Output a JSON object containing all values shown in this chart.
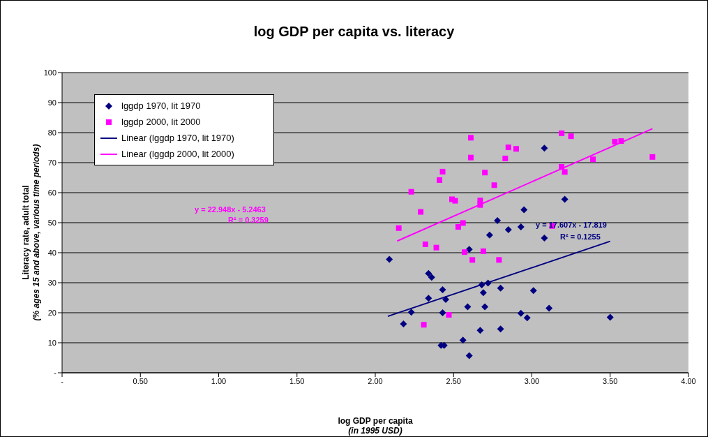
{
  "chart_data": {
    "type": "scatter",
    "title": "log GDP per capita vs. literacy",
    "xlabel": "log GDP per capita\n(in 1995 USD)",
    "ylabel": "Literacy rate, adult total\n(% ages 15 and above, various time periods)",
    "xlim": [
      0,
      4
    ],
    "xticks": [
      {
        "value": 0,
        "label": "-"
      },
      {
        "value": 0.5,
        "label": "0.50"
      },
      {
        "value": 1,
        "label": "1.00"
      },
      {
        "value": 1.5,
        "label": "1.50"
      },
      {
        "value": 2,
        "label": "2.00"
      },
      {
        "value": 2.5,
        "label": "2.50"
      },
      {
        "value": 3,
        "label": "3.00"
      },
      {
        "value": 3.5,
        "label": "3.50"
      },
      {
        "value": 4,
        "label": "4.00"
      }
    ],
    "ylim": [
      0,
      100
    ],
    "yticks": [
      {
        "value": 0,
        "label": "-"
      },
      10,
      20,
      30,
      40,
      50,
      60,
      70,
      80,
      90,
      100
    ],
    "grid": "y",
    "legend": "top left",
    "annotations": [
      "y = 22.948x - 5.2463",
      "R² = 0.3259",
      "y = 17.607x - 17.819",
      "R² = 0.1255"
    ],
    "series": [
      {
        "name": "lggdp 1970, lit 1970",
        "color": "#000080",
        "marker": "diamond",
        "x": [
          2.95,
          2.78,
          2.85,
          2.93,
          2.09,
          2.6,
          2.73,
          2.34,
          2.36,
          2.68,
          2.72,
          2.43,
          2.8,
          2.69,
          2.34,
          2.45,
          2.59,
          2.7,
          2.23,
          2.43,
          2.93,
          2.97,
          2.18,
          2.67,
          2.8,
          2.56,
          2.42,
          2.44,
          2.6,
          3.08,
          3.21,
          3.08,
          3.01,
          3.11,
          3.5
        ],
        "values": [
          54.3,
          50.7,
          47.7,
          48.6,
          37.8,
          41.1,
          45.9,
          33.1,
          31.8,
          29.3,
          29.9,
          27.7,
          28.2,
          26.7,
          24.8,
          24.4,
          22.0,
          22.0,
          20.2,
          20.0,
          19.8,
          18.3,
          16.3,
          14.1,
          14.6,
          10.9,
          9.1,
          9.1,
          5.7,
          74.8,
          57.8,
          44.9,
          27.4,
          21.5,
          18.5
        ]
      },
      {
        "name": "lggdp 2000, lit 2000",
        "color": "#ff00ff",
        "marker": "square",
        "x": [
          2.61,
          2.85,
          2.9,
          2.61,
          2.83,
          2.43,
          2.7,
          2.41,
          2.76,
          2.23,
          2.49,
          2.51,
          2.67,
          2.67,
          2.29,
          2.56,
          2.53,
          2.15,
          2.32,
          2.39,
          2.57,
          2.69,
          2.62,
          2.79,
          2.47,
          2.31,
          3.19,
          3.25,
          3.53,
          3.57,
          3.77,
          3.39,
          3.19,
          3.21,
          3.13
        ],
        "values": [
          78.3,
          75.1,
          74.6,
          71.7,
          71.4,
          67.0,
          66.7,
          64.2,
          62.5,
          60.3,
          57.8,
          57.3,
          57.4,
          55.9,
          53.6,
          49.9,
          48.6,
          48.2,
          42.8,
          41.7,
          40.2,
          40.5,
          37.6,
          37.6,
          19.3,
          16.0,
          79.8,
          78.8,
          77.0,
          77.2,
          71.9,
          71.1,
          68.6,
          66.9,
          48.9
        ]
      },
      {
        "name": "Linear (lggdp 1970, lit 1970)",
        "type": "line",
        "color": "#000080",
        "marker": "none",
        "x": [
          2.08,
          3.5
        ],
        "values": [
          18.8,
          43.8
        ]
      },
      {
        "name": "Linear (lggdp 2000, lit 2000)",
        "type": "line",
        "color": "#ff00ff",
        "marker": "none",
        "x": [
          2.14,
          3.77
        ],
        "values": [
          43.9,
          81.3
        ]
      }
    ]
  }
}
